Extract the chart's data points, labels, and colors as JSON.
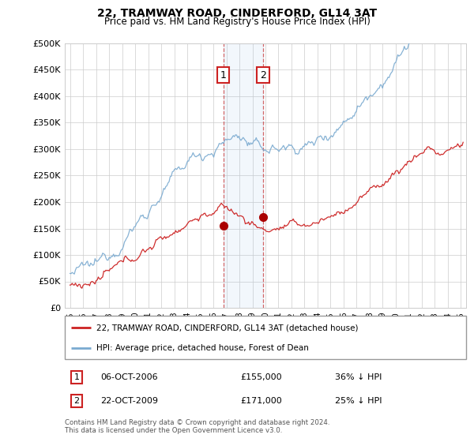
{
  "title": "22, TRAMWAY ROAD, CINDERFORD, GL14 3AT",
  "subtitle": "Price paid vs. HM Land Registry's House Price Index (HPI)",
  "legend_line1": "22, TRAMWAY ROAD, CINDERFORD, GL14 3AT (detached house)",
  "legend_line2": "HPI: Average price, detached house, Forest of Dean",
  "sale1_label": "1",
  "sale1_date": "06-OCT-2006",
  "sale1_price": "£155,000",
  "sale1_hpi": "36% ↓ HPI",
  "sale2_label": "2",
  "sale2_date": "22-OCT-2009",
  "sale2_price": "£171,000",
  "sale2_hpi": "25% ↓ HPI",
  "footnote": "Contains HM Land Registry data © Crown copyright and database right 2024.\nThis data is licensed under the Open Government Licence v3.0.",
  "hpi_color": "#7aaad0",
  "price_color": "#cc2222",
  "sale1_x": 2006.77,
  "sale1_y": 155000,
  "sale2_x": 2009.81,
  "sale2_y": 171000,
  "shade_x1": 2006.77,
  "shade_x2": 2009.81,
  "ylim_max": 500000,
  "ylim_min": 0,
  "yticks": [
    0,
    50000,
    100000,
    150000,
    200000,
    250000,
    300000,
    350000,
    400000,
    450000,
    500000
  ],
  "xlim_min": 1994.6,
  "xlim_max": 2025.4
}
